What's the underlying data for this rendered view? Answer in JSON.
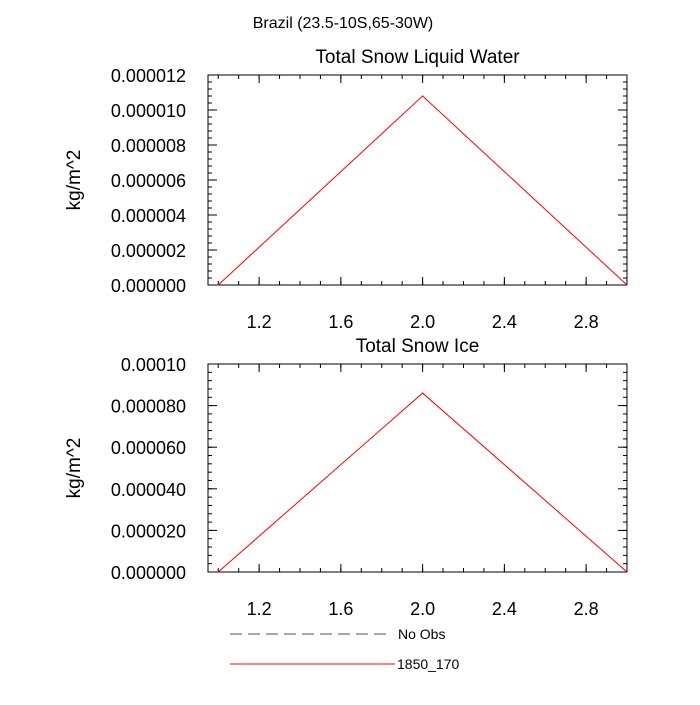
{
  "page_title": "Brazil (23.5-10S,65-30W)",
  "chart_data": [
    {
      "type": "line",
      "title": "Total Snow Liquid Water",
      "ylabel": "kg/m^2",
      "xlabel": "",
      "xlim": [
        0.95,
        3.0
      ],
      "ylim": [
        0,
        1.2e-05
      ],
      "x_ticks": [
        1.2,
        1.6,
        2.0,
        2.4,
        2.8
      ],
      "x_tick_labels": [
        "1.2",
        "1.6",
        "2.0",
        "2.4",
        "2.8"
      ],
      "y_ticks": [
        0,
        2e-06,
        4e-06,
        6e-06,
        8e-06,
        1e-05,
        1.2e-05
      ],
      "y_tick_labels": [
        "0.000000",
        "0.000002",
        "0.000004",
        "0.000006",
        "0.000008",
        "0.000010",
        "0.000012"
      ],
      "series": [
        {
          "name": "1850_170",
          "color": "#ff0000",
          "x": [
            1,
            2,
            3
          ],
          "values": [
            0,
            1.08e-05,
            0
          ]
        }
      ]
    },
    {
      "type": "line",
      "title": "Total Snow Ice",
      "ylabel": "kg/m^2",
      "xlabel": "",
      "xlim": [
        0.95,
        3.0
      ],
      "ylim": [
        0,
        0.0001
      ],
      "x_ticks": [
        1.2,
        1.6,
        2.0,
        2.4,
        2.8
      ],
      "x_tick_labels": [
        "1.2",
        "1.6",
        "2.0",
        "2.4",
        "2.8"
      ],
      "y_ticks": [
        0,
        2e-05,
        4e-05,
        6e-05,
        8e-05,
        0.0001
      ],
      "y_tick_labels": [
        "0.000000",
        "0.000020",
        "0.000040",
        "0.000060",
        "0.000080",
        "0.00010"
      ],
      "series": [
        {
          "name": "1850_170",
          "color": "#ff0000",
          "x": [
            1,
            2,
            3
          ],
          "values": [
            0,
            8.6e-05,
            0
          ]
        }
      ]
    }
  ],
  "legend": [
    {
      "label": "No Obs",
      "color": "#4a4a8a",
      "dash": "dashed"
    },
    {
      "label": "1850_170",
      "color": "#ff0000",
      "dash": "solid"
    }
  ]
}
